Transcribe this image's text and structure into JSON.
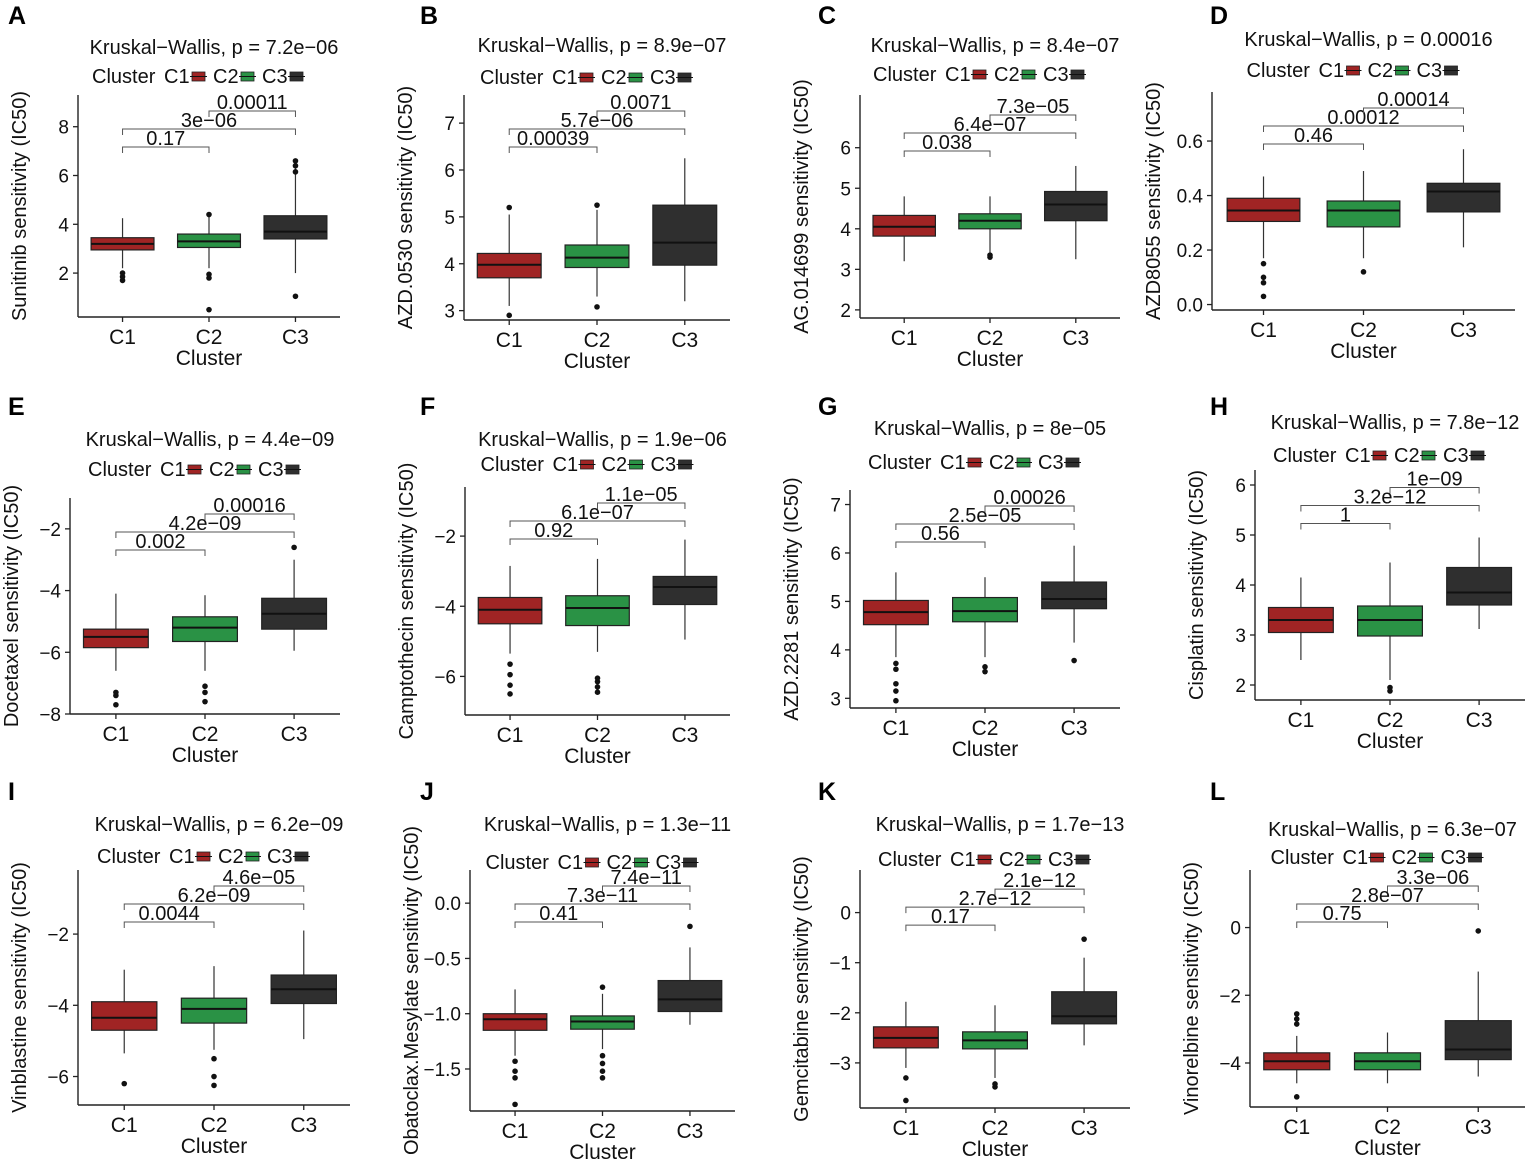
{
  "colors": {
    "C1": "#a02424",
    "C2": "#2a9245",
    "C3": "#2f2f2f"
  },
  "legend": {
    "title": "Cluster",
    "keys": [
      "C1",
      "C2",
      "C3"
    ]
  },
  "chart_data": [
    {
      "type": "box",
      "panel": "A",
      "title": "Kruskal−Wallis, p = 7.2e−06",
      "ylabel": "Sunitinib sensitivity (IC50)",
      "xlabel": "Cluster",
      "categories": [
        "C1",
        "C2",
        "C3"
      ],
      "ylim": [
        0.2,
        9.3
      ],
      "yticks": [
        2,
        4,
        6,
        8
      ],
      "ytick_labels": [
        "2",
        "4",
        "6",
        "8"
      ],
      "boxes": [
        {
          "min": 2.2,
          "q1": 2.95,
          "median": 3.2,
          "q3": 3.45,
          "max": 4.25,
          "outliers": [
            1.7,
            1.85,
            2.0
          ]
        },
        {
          "min": 2.2,
          "q1": 3.05,
          "median": 3.3,
          "q3": 3.6,
          "max": 4.4,
          "outliers": [
            0.5,
            1.8,
            1.95,
            4.4
          ]
        },
        {
          "min": 2.0,
          "q1": 3.4,
          "median": 3.7,
          "q3": 4.35,
          "max": 6.3,
          "outliers": [
            1.05,
            6.15,
            6.4,
            6.6
          ]
        }
      ],
      "comparisons": [
        {
          "pair": [
            "C1",
            "C2"
          ],
          "label": "0.17"
        },
        {
          "pair": [
            "C1",
            "C3"
          ],
          "label": "3e−06"
        },
        {
          "pair": [
            "C2",
            "C3"
          ],
          "label": "0.00011"
        }
      ]
    },
    {
      "type": "box",
      "panel": "B",
      "title": "Kruskal−Wallis, p = 8.9e−07",
      "ylabel": "AZD.0530 sensitivity (IC50)",
      "xlabel": "Cluster",
      "categories": [
        "C1",
        "C2",
        "C3"
      ],
      "ylim": [
        2.8,
        7.6
      ],
      "yticks": [
        3,
        4,
        5,
        6,
        7
      ],
      "ytick_labels": [
        "3",
        "4",
        "5",
        "6",
        "7"
      ],
      "boxes": [
        {
          "min": 3.1,
          "q1": 3.7,
          "median": 3.98,
          "q3": 4.22,
          "max": 5.05,
          "outliers": [
            2.9,
            5.2
          ]
        },
        {
          "min": 3.3,
          "q1": 3.92,
          "median": 4.13,
          "q3": 4.4,
          "max": 5.15,
          "outliers": [
            3.08,
            5.25
          ]
        },
        {
          "min": 3.2,
          "q1": 3.97,
          "median": 4.45,
          "q3": 5.25,
          "max": 6.25,
          "outliers": []
        }
      ],
      "comparisons": [
        {
          "pair": [
            "C1",
            "C2"
          ],
          "label": "0.00039"
        },
        {
          "pair": [
            "C1",
            "C3"
          ],
          "label": "5.7e−06"
        },
        {
          "pair": [
            "C2",
            "C3"
          ],
          "label": "0.0071"
        }
      ]
    },
    {
      "type": "box",
      "panel": "C",
      "title": "Kruskal−Wallis, p = 8.4e−07",
      "ylabel": "AG.014699 sensitivity (IC50)",
      "xlabel": "Cluster",
      "categories": [
        "C1",
        "C2",
        "C3"
      ],
      "ylim": [
        1.8,
        7.3
      ],
      "yticks": [
        2,
        3,
        4,
        5,
        6
      ],
      "ytick_labels": [
        "2",
        "3",
        "4",
        "5",
        "6"
      ],
      "boxes": [
        {
          "min": 3.2,
          "q1": 3.82,
          "median": 4.05,
          "q3": 4.33,
          "max": 4.8,
          "outliers": []
        },
        {
          "min": 3.4,
          "q1": 4.0,
          "median": 4.2,
          "q3": 4.37,
          "max": 4.8,
          "outliers": [
            3.3,
            3.35
          ]
        },
        {
          "min": 3.25,
          "q1": 4.2,
          "median": 4.6,
          "q3": 4.92,
          "max": 5.55,
          "outliers": []
        }
      ],
      "comparisons": [
        {
          "pair": [
            "C1",
            "C2"
          ],
          "label": "0.038"
        },
        {
          "pair": [
            "C1",
            "C3"
          ],
          "label": "6.4e−07"
        },
        {
          "pair": [
            "C2",
            "C3"
          ],
          "label": "7.3e−05"
        }
      ]
    },
    {
      "type": "box",
      "panel": "D",
      "title": "Kruskal−Wallis, p = 0.00016",
      "ylabel": "AZD8055 sensitivity (IC50)",
      "xlabel": "Cluster",
      "categories": [
        "C1",
        "C2",
        "C3"
      ],
      "ylim": [
        -0.02,
        0.78
      ],
      "yticks": [
        0.0,
        0.2,
        0.4,
        0.6
      ],
      "ytick_labels": [
        "0.0",
        "0.2",
        "0.4",
        "0.6"
      ],
      "boxes": [
        {
          "min": 0.17,
          "q1": 0.305,
          "median": 0.345,
          "q3": 0.39,
          "max": 0.47,
          "outliers": [
            0.03,
            0.08,
            0.1,
            0.15
          ]
        },
        {
          "min": 0.17,
          "q1": 0.285,
          "median": 0.345,
          "q3": 0.38,
          "max": 0.49,
          "outliers": [
            0.12
          ]
        },
        {
          "min": 0.21,
          "q1": 0.34,
          "median": 0.415,
          "q3": 0.445,
          "max": 0.57,
          "outliers": []
        }
      ],
      "comparisons": [
        {
          "pair": [
            "C1",
            "C2"
          ],
          "label": "0.46"
        },
        {
          "pair": [
            "C1",
            "C3"
          ],
          "label": "0.00012"
        },
        {
          "pair": [
            "C2",
            "C3"
          ],
          "label": "0.00014"
        }
      ]
    },
    {
      "type": "box",
      "panel": "E",
      "title": "Kruskal−Wallis, p = 4.4e−09",
      "ylabel": "Docetaxel sensitivity (IC50)",
      "xlabel": "Cluster",
      "categories": [
        "C1",
        "C2",
        "C3"
      ],
      "ylim": [
        -8.0,
        -1.0
      ],
      "yticks": [
        -8,
        -6,
        -4,
        -2
      ],
      "ytick_labels": [
        "−8",
        "−6",
        "−4",
        "−2"
      ],
      "boxes": [
        {
          "min": -6.6,
          "q1": -5.85,
          "median": -5.5,
          "q3": -5.25,
          "max": -4.1,
          "outliers": [
            -7.7,
            -7.4,
            -7.3
          ]
        },
        {
          "min": -6.6,
          "q1": -5.65,
          "median": -5.2,
          "q3": -4.85,
          "max": -4.15,
          "outliers": [
            -7.6,
            -7.3,
            -7.1
          ]
        },
        {
          "min": -5.95,
          "q1": -5.25,
          "median": -4.75,
          "q3": -4.25,
          "max": -3.0,
          "outliers": [
            -2.6
          ]
        }
      ],
      "comparisons": [
        {
          "pair": [
            "C1",
            "C2"
          ],
          "label": "0.002"
        },
        {
          "pair": [
            "C1",
            "C3"
          ],
          "label": "4.2e−09"
        },
        {
          "pair": [
            "C2",
            "C3"
          ],
          "label": "0.00016"
        }
      ]
    },
    {
      "type": "box",
      "panel": "F",
      "title": "Kruskal−Wallis, p = 1.9e−06",
      "ylabel": "Camptothecin sensitivity (IC50)",
      "xlabel": "Cluster",
      "categories": [
        "C1",
        "C2",
        "C3"
      ],
      "ylim": [
        -7.1,
        -0.6
      ],
      "yticks": [
        -6,
        -4,
        -2
      ],
      "ytick_labels": [
        "−6",
        "−4",
        "−2"
      ],
      "boxes": [
        {
          "min": -5.35,
          "q1": -4.5,
          "median": -4.1,
          "q3": -3.75,
          "max": -2.85,
          "outliers": [
            -6.5,
            -6.25,
            -5.95,
            -5.65
          ]
        },
        {
          "min": -5.3,
          "q1": -4.55,
          "median": -4.05,
          "q3": -3.7,
          "max": -2.65,
          "outliers": [
            -6.45,
            -6.3,
            -6.15,
            -6.05
          ]
        },
        {
          "min": -4.95,
          "q1": -3.95,
          "median": -3.45,
          "q3": -3.15,
          "max": -2.1,
          "outliers": []
        }
      ],
      "comparisons": [
        {
          "pair": [
            "C1",
            "C2"
          ],
          "label": "0.92"
        },
        {
          "pair": [
            "C1",
            "C3"
          ],
          "label": "6.1e−07"
        },
        {
          "pair": [
            "C2",
            "C3"
          ],
          "label": "1.1e−05"
        }
      ]
    },
    {
      "type": "box",
      "panel": "G",
      "title": "Kruskal−Wallis, p = 8e−05",
      "ylabel": "AZD.2281 sensitivity (IC50)",
      "xlabel": "Cluster",
      "categories": [
        "C1",
        "C2",
        "C3"
      ],
      "ylim": [
        2.8,
        7.3
      ],
      "yticks": [
        3,
        4,
        5,
        6,
        7
      ],
      "ytick_labels": [
        "3",
        "4",
        "5",
        "6",
        "7"
      ],
      "boxes": [
        {
          "min": 3.85,
          "q1": 4.52,
          "median": 4.78,
          "q3": 5.02,
          "max": 5.6,
          "outliers": [
            2.95,
            3.15,
            3.3,
            3.6,
            3.72
          ]
        },
        {
          "min": 3.85,
          "q1": 4.58,
          "median": 4.8,
          "q3": 5.08,
          "max": 5.5,
          "outliers": [
            3.55,
            3.65
          ]
        },
        {
          "min": 4.15,
          "q1": 4.85,
          "median": 5.05,
          "q3": 5.4,
          "max": 6.15,
          "outliers": [
            3.78
          ]
        }
      ],
      "comparisons": [
        {
          "pair": [
            "C1",
            "C2"
          ],
          "label": "0.56"
        },
        {
          "pair": [
            "C1",
            "C3"
          ],
          "label": "2.5e−05"
        },
        {
          "pair": [
            "C2",
            "C3"
          ],
          "label": "0.00026"
        }
      ]
    },
    {
      "type": "box",
      "panel": "H",
      "title": "Kruskal−Wallis, p = 7.8e−12",
      "ylabel": "Cisplatin sensitivity (IC50)",
      "xlabel": "Cluster",
      "categories": [
        "C1",
        "C2",
        "C3"
      ],
      "ylim": [
        1.7,
        6.3
      ],
      "yticks": [
        2,
        3,
        4,
        5,
        6
      ],
      "ytick_labels": [
        "2",
        "3",
        "4",
        "5",
        "6"
      ],
      "boxes": [
        {
          "min": 2.5,
          "q1": 3.05,
          "median": 3.3,
          "q3": 3.55,
          "max": 4.15,
          "outliers": []
        },
        {
          "min": 2.1,
          "q1": 2.98,
          "median": 3.3,
          "q3": 3.58,
          "max": 4.45,
          "outliers": [
            1.88,
            1.95
          ]
        },
        {
          "min": 3.12,
          "q1": 3.6,
          "median": 3.85,
          "q3": 4.35,
          "max": 4.95,
          "outliers": []
        }
      ],
      "comparisons": [
        {
          "pair": [
            "C1",
            "C2"
          ],
          "label": "1"
        },
        {
          "pair": [
            "C1",
            "C3"
          ],
          "label": "3.2e−12"
        },
        {
          "pair": [
            "C2",
            "C3"
          ],
          "label": "1e−09"
        }
      ]
    },
    {
      "type": "box",
      "panel": "I",
      "title": "Kruskal−Wallis, p = 6.2e−09",
      "ylabel": "Vinblastine sensitivity (IC50)",
      "xlabel": "Cluster",
      "categories": [
        "C1",
        "C2",
        "C3"
      ],
      "ylim": [
        -6.8,
        -0.2
      ],
      "yticks": [
        -6,
        -4,
        -2
      ],
      "ytick_labels": [
        "−6",
        "−4",
        "−2"
      ],
      "boxes": [
        {
          "min": -5.35,
          "q1": -4.7,
          "median": -4.35,
          "q3": -3.9,
          "max": -3.0,
          "outliers": [
            -6.2
          ]
        },
        {
          "min": -5.25,
          "q1": -4.5,
          "median": -4.1,
          "q3": -3.8,
          "max": -2.9,
          "outliers": [
            -6.25,
            -6.0,
            -5.5
          ]
        },
        {
          "min": -4.95,
          "q1": -3.95,
          "median": -3.55,
          "q3": -3.15,
          "max": -1.9,
          "outliers": []
        }
      ],
      "comparisons": [
        {
          "pair": [
            "C1",
            "C2"
          ],
          "label": "0.0044"
        },
        {
          "pair": [
            "C1",
            "C3"
          ],
          "label": "6.2e−09"
        },
        {
          "pair": [
            "C2",
            "C3"
          ],
          "label": "4.6e−05"
        }
      ]
    },
    {
      "type": "box",
      "panel": "J",
      "title": "Kruskal−Wallis, p = 1.3e−11",
      "ylabel": "Obatoclax.Mesylate sensitivity (IC50)",
      "xlabel": "Cluster",
      "categories": [
        "C1",
        "C2",
        "C3"
      ],
      "ylim": [
        -1.88,
        0.3
      ],
      "yticks": [
        -1.5,
        -1.0,
        -0.5,
        0.0
      ],
      "ytick_labels": [
        "−1.5",
        "−1.0",
        "−0.5",
        "0.0"
      ],
      "boxes": [
        {
          "min": -1.38,
          "q1": -1.15,
          "median": -1.05,
          "q3": -1.0,
          "max": -0.78,
          "outliers": [
            -1.82,
            -1.58,
            -1.52,
            -1.43
          ]
        },
        {
          "min": -1.32,
          "q1": -1.14,
          "median": -1.07,
          "q3": -1.02,
          "max": -0.82,
          "outliers": [
            -1.58,
            -1.52,
            -1.45,
            -1.38,
            -0.76
          ]
        },
        {
          "min": -1.1,
          "q1": -0.98,
          "median": -0.87,
          "q3": -0.7,
          "max": -0.4,
          "outliers": [
            -0.21
          ]
        }
      ],
      "comparisons": [
        {
          "pair": [
            "C1",
            "C2"
          ],
          "label": "0.41"
        },
        {
          "pair": [
            "C1",
            "C3"
          ],
          "label": "7.3e−11"
        },
        {
          "pair": [
            "C2",
            "C3"
          ],
          "label": "7.4e−11"
        }
      ]
    },
    {
      "type": "box",
      "panel": "K",
      "title": "Kruskal−Wallis, p = 1.7e−13",
      "ylabel": "Gemcitabine sensitivity (IC50)",
      "xlabel": "Cluster",
      "categories": [
        "C1",
        "C2",
        "C3"
      ],
      "ylim": [
        -3.9,
        0.85
      ],
      "yticks": [
        -3,
        -2,
        -1,
        0
      ],
      "ytick_labels": [
        "−3",
        "−2",
        "−1",
        "0"
      ],
      "boxes": [
        {
          "min": -3.1,
          "q1": -2.7,
          "median": -2.5,
          "q3": -2.28,
          "max": -1.78,
          "outliers": [
            -3.75,
            -3.3
          ]
        },
        {
          "min": -3.3,
          "q1": -2.72,
          "median": -2.55,
          "q3": -2.38,
          "max": -1.85,
          "outliers": [
            -3.48,
            -3.42
          ]
        },
        {
          "min": -2.65,
          "q1": -2.22,
          "median": -2.07,
          "q3": -1.58,
          "max": -0.9,
          "outliers": [
            -0.53
          ]
        }
      ],
      "comparisons": [
        {
          "pair": [
            "C1",
            "C2"
          ],
          "label": "0.17"
        },
        {
          "pair": [
            "C1",
            "C3"
          ],
          "label": "2.7e−12"
        },
        {
          "pair": [
            "C2",
            "C3"
          ],
          "label": "2.1e−12"
        }
      ]
    },
    {
      "type": "box",
      "panel": "L",
      "title": "Kruskal−Wallis, p = 6.3e−07",
      "ylabel": "Vinorelbine sensitivity (IC50)",
      "xlabel": "Cluster",
      "categories": [
        "C1",
        "C2",
        "C3"
      ],
      "ylim": [
        -5.3,
        1.7
      ],
      "yticks": [
        -4,
        -2,
        0
      ],
      "ytick_labels": [
        "−4",
        "−2",
        "0"
      ],
      "boxes": [
        {
          "min": -4.6,
          "q1": -4.2,
          "median": -3.95,
          "q3": -3.7,
          "max": -3.2,
          "outliers": [
            -5.0,
            -2.85,
            -2.7,
            -2.55
          ]
        },
        {
          "min": -4.6,
          "q1": -4.2,
          "median": -3.95,
          "q3": -3.7,
          "max": -3.1,
          "outliers": []
        },
        {
          "min": -4.4,
          "q1": -3.9,
          "median": -3.6,
          "q3": -2.75,
          "max": -1.3,
          "outliers": [
            -0.1
          ]
        }
      ],
      "comparisons": [
        {
          "pair": [
            "C1",
            "C2"
          ],
          "label": "0.75"
        },
        {
          "pair": [
            "C1",
            "C3"
          ],
          "label": "2.8e−07"
        },
        {
          "pair": [
            "C2",
            "C3"
          ],
          "label": "3.3e−06"
        }
      ]
    }
  ]
}
